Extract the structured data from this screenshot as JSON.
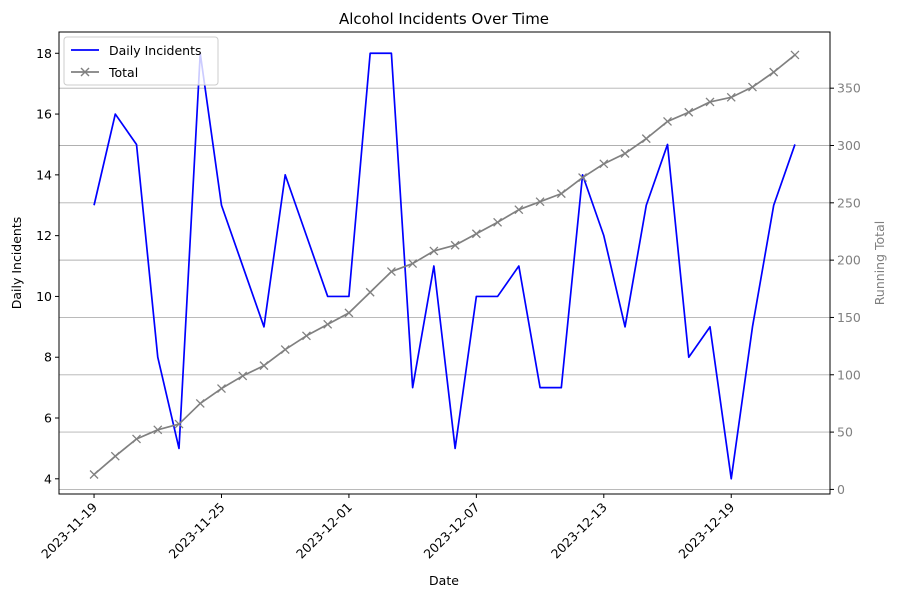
{
  "chart_data": {
    "type": "line",
    "title": "Alcohol Incidents Over Time",
    "xlabel": "Date",
    "ylabel": "Daily Incidents",
    "y2label": "Running Total",
    "x": [
      "2023-11-19",
      "2023-11-20",
      "2023-11-21",
      "2023-11-22",
      "2023-11-23",
      "2023-11-24",
      "2023-11-25",
      "2023-11-26",
      "2023-11-27",
      "2023-11-28",
      "2023-11-29",
      "2023-11-30",
      "2023-12-01",
      "2023-12-02",
      "2023-12-03",
      "2023-12-04",
      "2023-12-05",
      "2023-12-06",
      "2023-12-07",
      "2023-12-08",
      "2023-12-09",
      "2023-12-10",
      "2023-12-11",
      "2023-12-12",
      "2023-12-13",
      "2023-12-14",
      "2023-12-15",
      "2023-12-16",
      "2023-12-17",
      "2023-12-18",
      "2023-12-19",
      "2023-12-20",
      "2023-12-21",
      "2023-12-22"
    ],
    "xticks": [
      "2023-11-19",
      "2023-11-25",
      "2023-12-01",
      "2023-12-07",
      "2023-12-13",
      "2023-12-19"
    ],
    "ylim": [
      3.5,
      18.7
    ],
    "yticks": [
      4,
      6,
      8,
      10,
      12,
      14,
      16,
      18
    ],
    "y2lim": [
      -4,
      399
    ],
    "y2ticks": [
      0,
      50,
      100,
      150,
      200,
      250,
      300,
      350
    ],
    "grid": "right-axis horizontal",
    "legend": "upper-left",
    "series": [
      {
        "name": "Daily Incidents",
        "axis": "left",
        "color": "#0000ff",
        "marker": "none",
        "values": [
          13,
          16,
          15,
          8,
          5,
          18,
          13,
          11,
          9,
          14,
          12,
          10,
          10,
          18,
          18,
          7,
          11,
          5,
          10,
          10,
          11,
          7,
          7,
          14,
          12,
          9,
          13,
          15,
          8,
          9,
          4,
          9,
          13,
          15
        ]
      },
      {
        "name": "Total",
        "axis": "right",
        "color": "#808080",
        "marker": "x",
        "values": [
          13,
          29,
          44,
          52,
          57,
          75,
          88,
          99,
          108,
          122,
          134,
          144,
          154,
          172,
          190,
          197,
          208,
          213,
          223,
          233,
          244,
          251,
          258,
          272,
          284,
          293,
          306,
          321,
          329,
          338,
          342,
          351,
          364,
          379
        ]
      }
    ]
  }
}
